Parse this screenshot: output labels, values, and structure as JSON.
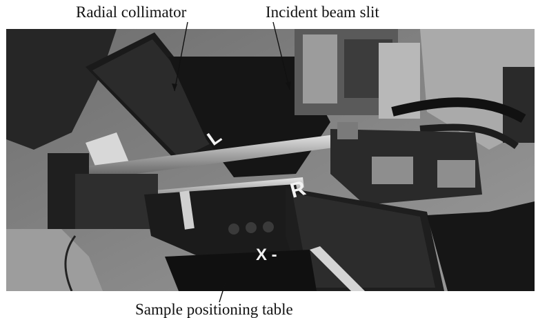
{
  "labels": {
    "radial_collimator": "Radial collimator",
    "incident_beam_slit": "Incident beam slit",
    "sample_positioning_table": "Sample positioning table"
  },
  "photo": {
    "marker_left": "L",
    "marker_right": "R",
    "marker_axis": "X -"
  },
  "colors": {
    "dark_metal": "#1c1c1c",
    "floor": "#8a8a8a",
    "steel": "#b5b5b5"
  }
}
